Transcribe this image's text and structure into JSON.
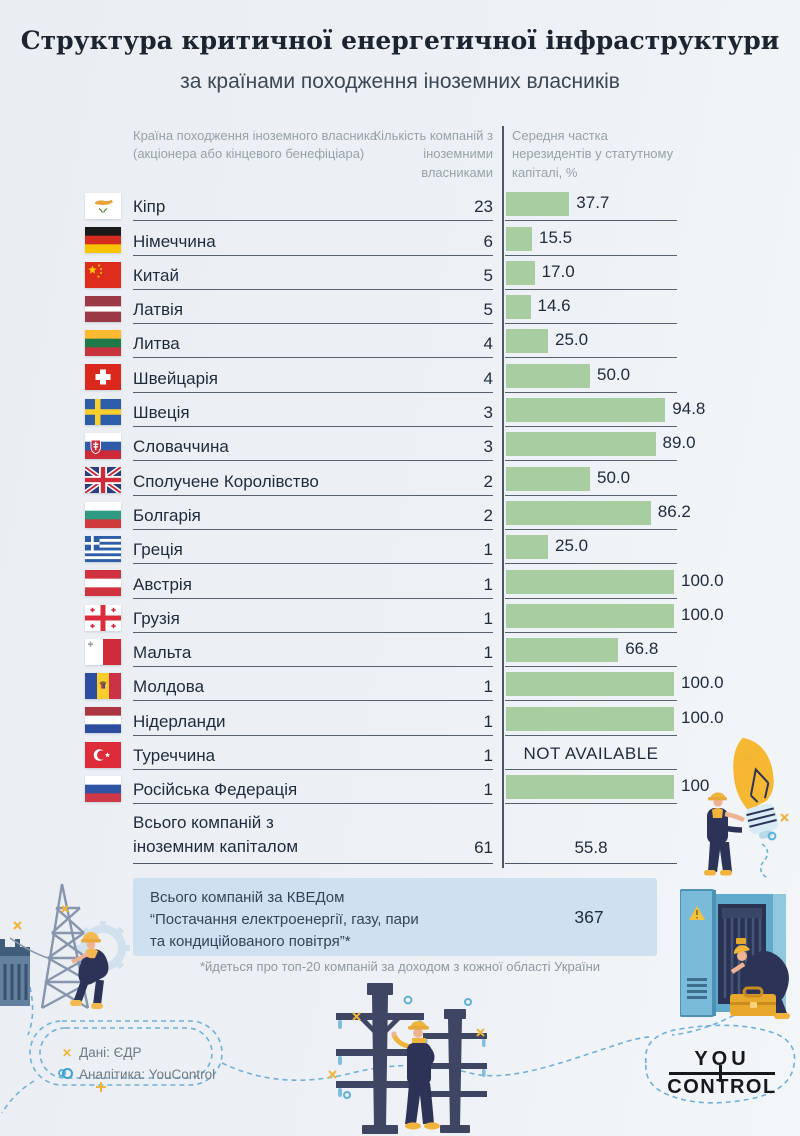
{
  "title": "Структура критичної енергетичної інфраструктури",
  "subtitle": "за країнами походження іноземних власників",
  "colors": {
    "bar_green": "#a7cda1",
    "box_blue": "#cfe1f0",
    "accent_yellow": "#f0b43a",
    "figure_navy": "#2c3357",
    "dashed_blue": "#6fb0d6"
  },
  "table": {
    "col_country": "Країна походження іноземного власника (акціонера або кінцевого бенефіціара)",
    "col_companies": "Кількість компаній з іноземними власниками",
    "col_share": "Середня частка нерезидентів у статутному капіталі, %",
    "rows": [
      {
        "flag": "cy",
        "country": "Кіпр",
        "companies": "23",
        "share": 37.7,
        "share_label": "37.7"
      },
      {
        "flag": "de",
        "country": "Німеччина",
        "companies": "6",
        "share": 15.5,
        "share_label": "15.5"
      },
      {
        "flag": "cn",
        "country": "Китай",
        "companies": "5",
        "share": 17.0,
        "share_label": "17.0"
      },
      {
        "flag": "lv",
        "country": "Латвія",
        "companies": "5",
        "share": 14.6,
        "share_label": "14.6"
      },
      {
        "flag": "lt",
        "country": "Литва",
        "companies": "4",
        "share": 25.0,
        "share_label": "25.0"
      },
      {
        "flag": "ch",
        "country": "Швейцарія",
        "companies": "4",
        "share": 50.0,
        "share_label": "50.0"
      },
      {
        "flag": "se",
        "country": "Швеція",
        "companies": "3",
        "share": 94.8,
        "share_label": "94.8"
      },
      {
        "flag": "sk",
        "country": "Словаччина",
        "companies": "3",
        "share": 89.0,
        "share_label": "89.0"
      },
      {
        "flag": "gb",
        "country": "Сполучене Королівство",
        "companies": "2",
        "share": 50.0,
        "share_label": "50.0"
      },
      {
        "flag": "bg",
        "country": "Болгарія",
        "companies": "2",
        "share": 86.2,
        "share_label": "86.2"
      },
      {
        "flag": "gr",
        "country": "Греція",
        "companies": "1",
        "share": 25.0,
        "share_label": "25.0"
      },
      {
        "flag": "at",
        "country": "Австрія",
        "companies": "1",
        "share": 100.0,
        "share_label": "100.0"
      },
      {
        "flag": "ge",
        "country": "Грузія",
        "companies": "1",
        "share": 100.0,
        "share_label": "100.0"
      },
      {
        "flag": "mt",
        "country": "Мальта",
        "companies": "1",
        "share": 66.8,
        "share_label": "66.8"
      },
      {
        "flag": "md",
        "country": "Молдова",
        "companies": "1",
        "share": 100.0,
        "share_label": "100.0"
      },
      {
        "flag": "nl",
        "country": "Нідерланди",
        "companies": "1",
        "share": 100.0,
        "share_label": "100.0"
      },
      {
        "flag": "tr",
        "country": "Туреччина",
        "companies": "1",
        "share": null,
        "share_label": "NOT AVAILABLE"
      },
      {
        "flag": "ru",
        "country": "Російська Федерація",
        "companies": "1",
        "share": 100,
        "share_label": "100"
      }
    ],
    "total": {
      "label1": "Всього компаній з",
      "label2": "іноземним капіталом",
      "companies": "61",
      "share": "55.8"
    }
  },
  "kved": {
    "line1": "Всього компаній за КВЕДом",
    "line2": "“Постачання електроенергії, газу, пари",
    "line3": "та кондиційованого повітря”*",
    "value": "367"
  },
  "footnote": "*йдеться про топ-20 компаній за доходом з кожної області України",
  "footer": {
    "data_source": "Дані: ЄДР",
    "analytics": "Аналітика: YouControl",
    "logo_line1": "YOU",
    "logo_line2": "CONTROL"
  },
  "chart_data": {
    "type": "bar",
    "orientation": "horizontal",
    "title": "Структура критичної енергетичної інфраструктури",
    "subtitle": "за країнами походження іноземних власників",
    "categories": [
      "Кіпр",
      "Німеччина",
      "Китай",
      "Латвія",
      "Литва",
      "Швейцарія",
      "Швеція",
      "Словаччина",
      "Сполучене Королівство",
      "Болгарія",
      "Греція",
      "Австрія",
      "Грузія",
      "Мальта",
      "Молдова",
      "Нідерланди",
      "Туреччина",
      "Російська Федерація"
    ],
    "series": [
      {
        "name": "Кількість компаній з іноземними власниками",
        "values": [
          23,
          6,
          5,
          5,
          4,
          4,
          3,
          3,
          2,
          2,
          1,
          1,
          1,
          1,
          1,
          1,
          1,
          1
        ]
      },
      {
        "name": "Середня частка нерезидентів у статутному капіталі, %",
        "values": [
          37.7,
          15.5,
          17.0,
          14.6,
          25.0,
          50.0,
          94.8,
          89.0,
          50.0,
          86.2,
          25.0,
          100.0,
          100.0,
          66.8,
          100.0,
          100.0,
          null,
          100
        ]
      }
    ],
    "not_available_label": "NOT AVAILABLE",
    "totals": {
      "companies_with_foreign_capital": 61,
      "average_share": 55.8,
      "companies_by_kved": 367
    },
    "xlim": [
      0,
      100
    ],
    "grid": false,
    "legend_position": "column-headers"
  }
}
